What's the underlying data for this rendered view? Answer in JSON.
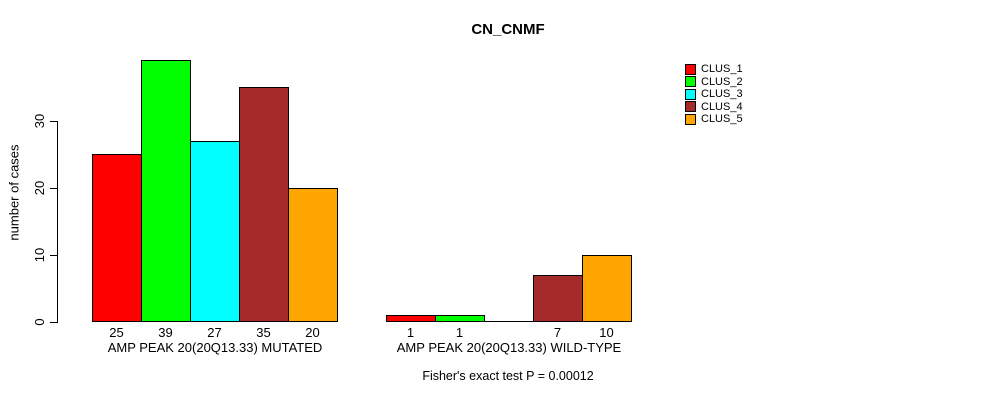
{
  "chart_data": {
    "type": "bar",
    "title": "CN_CNMF",
    "ylabel": "number of cases",
    "xlabel": "",
    "yticks": [
      0,
      10,
      20,
      30
    ],
    "ylim": [
      0,
      40
    ],
    "grid": false,
    "legend_position": "right-outside",
    "categories": [
      "AMP PEAK 20(20Q13.33) MUTATED",
      "AMP PEAK 20(20Q13.33) WILD-TYPE"
    ],
    "series": [
      {
        "name": "CLUS_1",
        "color": "#FF0000",
        "values": [
          25,
          1
        ]
      },
      {
        "name": "CLUS_2",
        "color": "#00FF00",
        "values": [
          39,
          1
        ]
      },
      {
        "name": "CLUS_3",
        "color": "#00FFFF",
        "values": [
          27,
          0
        ]
      },
      {
        "name": "CLUS_4",
        "color": "#A52A2A",
        "values": [
          35,
          7
        ]
      },
      {
        "name": "CLUS_5",
        "color": "#FFA500",
        "values": [
          20,
          10
        ]
      }
    ],
    "bar_value_labels": {
      "shown": true,
      "zero_hidden": true
    },
    "annotation": "Fisher's exact test P = 0.00012"
  }
}
